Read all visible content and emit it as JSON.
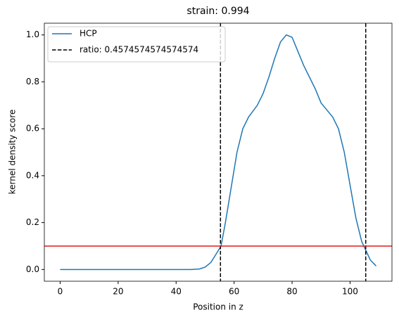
{
  "chart_data": {
    "type": "line",
    "title": "strain: 0.994",
    "xlabel": "Position in z",
    "ylabel": "kernel density score",
    "series": [
      {
        "name": "HCP",
        "color": "#1f77b4",
        "x": [
          0,
          10,
          20,
          30,
          40,
          45,
          48,
          50,
          52,
          54,
          55.5,
          57,
          59,
          61,
          63,
          65,
          68,
          70,
          72,
          74,
          76,
          78,
          80,
          82,
          84,
          86,
          88,
          90,
          92,
          94,
          96,
          98,
          100,
          102,
          104,
          105.5,
          107,
          109
        ],
        "values": [
          0,
          0,
          0,
          0,
          0,
          0,
          0.002,
          0.01,
          0.03,
          0.07,
          0.1,
          0.2,
          0.35,
          0.5,
          0.6,
          0.65,
          0.7,
          0.75,
          0.82,
          0.9,
          0.97,
          1.0,
          0.99,
          0.93,
          0.87,
          0.82,
          0.77,
          0.71,
          0.68,
          0.65,
          0.6,
          0.5,
          0.36,
          0.22,
          0.12,
          0.08,
          0.04,
          0.015
        ]
      }
    ],
    "vlines": {
      "name": "ratio: 0.4574574574574574",
      "color": "#000000",
      "values": [
        55.3,
        105.4
      ]
    },
    "hline": {
      "value": 0.1,
      "color": "#e41a1c"
    },
    "xlim": [
      -5.45,
      114.45
    ],
    "xticks": [
      0,
      20,
      40,
      60,
      80,
      100
    ],
    "ylim": [
      -0.05,
      1.05
    ],
    "yticks": [
      {
        "value": 0,
        "label": "0.0"
      },
      0.2,
      0.4,
      0.6,
      0.8,
      {
        "value": 1,
        "label": "1.0"
      }
    ],
    "legend": "upper-left"
  }
}
